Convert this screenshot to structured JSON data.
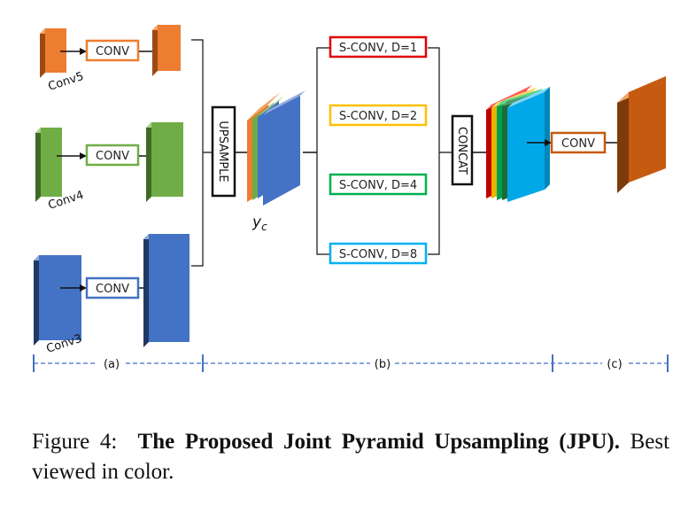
{
  "diagram": {
    "conv_label": "CONV",
    "feature_maps": [
      {
        "label": "Conv5",
        "color": "#ED7D31"
      },
      {
        "label": "Conv4",
        "color": "#70AD47"
      },
      {
        "label": "Conv3",
        "color": "#4472C4"
      }
    ],
    "upsample_label": "UPSAMPLE",
    "yc_label": "y",
    "yc_subscript": "c",
    "sconv_boxes": [
      {
        "label": "S-CONV, D=1",
        "color": "#E00000"
      },
      {
        "label": "S-CONV, D=2",
        "color": "#FFC000"
      },
      {
        "label": "S-CONV, D=4",
        "color": "#00B050"
      },
      {
        "label": "S-CONV, D=8",
        "color": "#00B0F0"
      }
    ],
    "concat_label": "CONCAT",
    "final_conv_label": "CONV",
    "stage_labels": [
      "(a)",
      "(b)",
      "(c)"
    ]
  },
  "caption": {
    "prefix": "Figure 4:",
    "title": "The Proposed Joint Pyramid Upsampling (JPU).",
    "rest": "Best viewed in color."
  }
}
